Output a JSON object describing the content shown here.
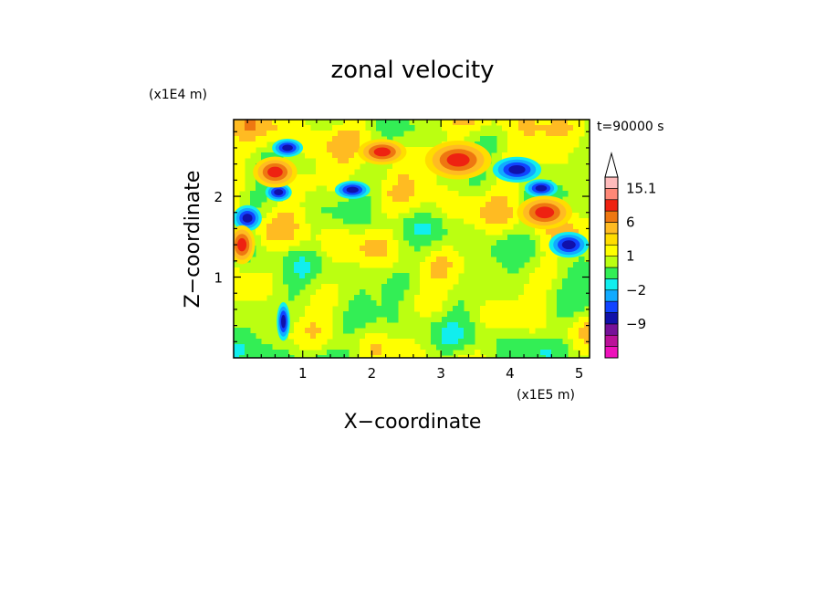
{
  "chart_data": {
    "type": "heatmap",
    "title": "zonal velocity",
    "xlabel": "X−coordinate",
    "ylabel": "Z−coordinate",
    "x_unit": "(x1E5 m)",
    "y_unit": "(x1E4 m)",
    "time_label": "t=90000 s",
    "xlim": [
      0,
      5.15
    ],
    "ylim": [
      0,
      2.95
    ],
    "x_ticks": [
      1,
      2,
      3,
      4,
      5
    ],
    "y_ticks": [
      1,
      2
    ],
    "grid": false,
    "colorbar": {
      "labels": [
        {
          "value": 15.1,
          "text": "15.1"
        },
        {
          "value": 6,
          "text": "6"
        },
        {
          "value": 1,
          "text": "1"
        },
        {
          "value": -2,
          "text": "−2"
        },
        {
          "value": -9,
          "text": "−9"
        }
      ],
      "levels": [
        -15,
        -12,
        -9,
        -6,
        -3,
        -2,
        -1,
        0,
        1,
        2,
        3,
        6,
        9,
        12,
        15.1
      ],
      "colors": [
        "#ee11bb",
        "#bb1199",
        "#771199",
        "#1111aa",
        "#1144ff",
        "#11aaff",
        "#11eeee",
        "#33ee55",
        "#bbff11",
        "#ffff00",
        "#ffdd00",
        "#ffbb22",
        "#ee7711",
        "#ee2211",
        "#ff8877",
        "#ffbbbb"
      ],
      "extend_max": true
    },
    "features": [
      {
        "level": "negative",
        "x": 0.78,
        "z": 2.6,
        "sx": 0.14,
        "sz": 0.07
      },
      {
        "level": "negative",
        "x": 1.72,
        "z": 2.08,
        "sx": 0.16,
        "sz": 0.07
      },
      {
        "level": "negative",
        "x": 4.1,
        "z": 2.33,
        "sx": 0.22,
        "sz": 0.1
      },
      {
        "level": "negative",
        "x": 4.85,
        "z": 1.4,
        "sx": 0.18,
        "sz": 0.1
      },
      {
        "level": "negative",
        "x": 0.2,
        "z": 1.73,
        "sx": 0.13,
        "sz": 0.1
      },
      {
        "level": "negative",
        "x": 0.65,
        "z": 2.05,
        "sx": 0.12,
        "sz": 0.07
      },
      {
        "level": "negative",
        "x": 4.45,
        "z": 2.1,
        "sx": 0.15,
        "sz": 0.07
      },
      {
        "level": "negative",
        "x": 0.72,
        "z": 0.45,
        "sx": 0.06,
        "sz": 0.15
      },
      {
        "level": "positive",
        "x": 0.6,
        "z": 2.3,
        "sx": 0.2,
        "sz": 0.12
      },
      {
        "level": "positive",
        "x": 0.12,
        "z": 1.4,
        "sx": 0.12,
        "sz": 0.15
      },
      {
        "level": "positive",
        "x": 4.5,
        "z": 1.8,
        "sx": 0.25,
        "sz": 0.13
      },
      {
        "level": "positive",
        "x": 3.25,
        "z": 2.45,
        "sx": 0.3,
        "sz": 0.15
      },
      {
        "level": "positive",
        "x": 2.15,
        "z": 2.55,
        "sx": 0.22,
        "sz": 0.1
      }
    ]
  }
}
